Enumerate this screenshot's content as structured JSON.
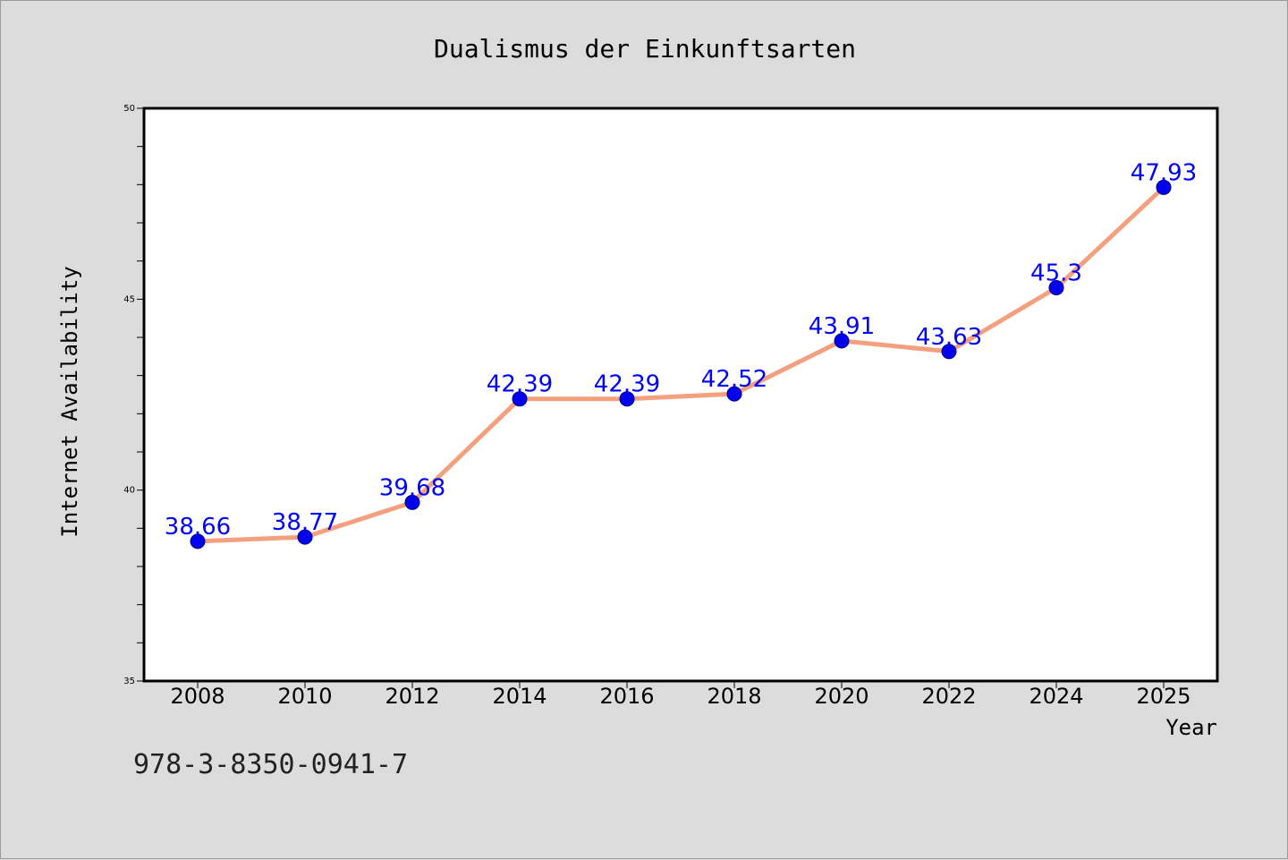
{
  "chart_data": {
    "type": "line",
    "title": "Dualismus der Einkunftsarten",
    "xlabel": "Year",
    "ylabel": "Internet Availability",
    "categories": [
      "2008",
      "2010",
      "2012",
      "2014",
      "2016",
      "2018",
      "2020",
      "2022",
      "2024",
      "2025"
    ],
    "series": [
      {
        "values": [
          38.66,
          38.77,
          39.68,
          42.39,
          42.39,
          42.52,
          43.91,
          43.63,
          45.3,
          47.93
        ],
        "data_labels": [
          "38.66",
          "38.77",
          "39.68",
          "42.39",
          "42.39",
          "42.52",
          "43.91",
          "43.63",
          "45.3",
          "47.93"
        ]
      }
    ],
    "ylim": [
      35,
      50
    ],
    "y_ticks": [
      "35",
      "40",
      "45",
      "50"
    ],
    "y_tick_values": [
      35,
      40,
      45,
      50
    ],
    "y_minor_step": 1,
    "grid": false,
    "legend": "none",
    "colors": {
      "line": "#f4a07f",
      "marker": "#0000ee",
      "data_label": "#0000ff",
      "plot_background": "#ffffff",
      "page_background": "#dcdcdc"
    }
  },
  "footer": {
    "code": "978-3-8350-0941-7"
  }
}
